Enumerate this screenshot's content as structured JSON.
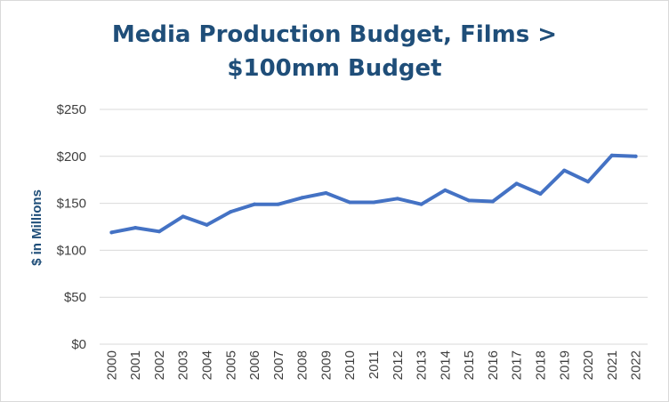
{
  "chart_data": {
    "type": "line",
    "title_lines": [
      "Media Production Budget, Films >",
      "$100mm Budget"
    ],
    "ylabel": "$ in Millions",
    "xlabel": "",
    "ylim": [
      0,
      250
    ],
    "y_ticks": [
      0,
      50,
      100,
      150,
      200,
      250
    ],
    "y_tick_labels": [
      "$0",
      "$50",
      "$100",
      "$150",
      "$200",
      "$250"
    ],
    "grid": true,
    "legend": "none",
    "line_color": "#4472c4",
    "categories": [
      "2000",
      "2001",
      "2002",
      "2003",
      "2004",
      "2005",
      "2006",
      "2007",
      "2008",
      "2009",
      "2010",
      "2011",
      "2012",
      "2013",
      "2014",
      "2015",
      "2016",
      "2017",
      "2018",
      "2019",
      "2020",
      "2021",
      "2022"
    ],
    "series": [
      {
        "values": [
          119,
          124,
          120,
          136,
          127,
          141,
          149,
          149,
          156,
          161,
          151,
          151,
          155,
          149,
          164,
          153,
          152,
          171,
          160,
          185,
          173,
          201,
          200
        ]
      }
    ]
  }
}
